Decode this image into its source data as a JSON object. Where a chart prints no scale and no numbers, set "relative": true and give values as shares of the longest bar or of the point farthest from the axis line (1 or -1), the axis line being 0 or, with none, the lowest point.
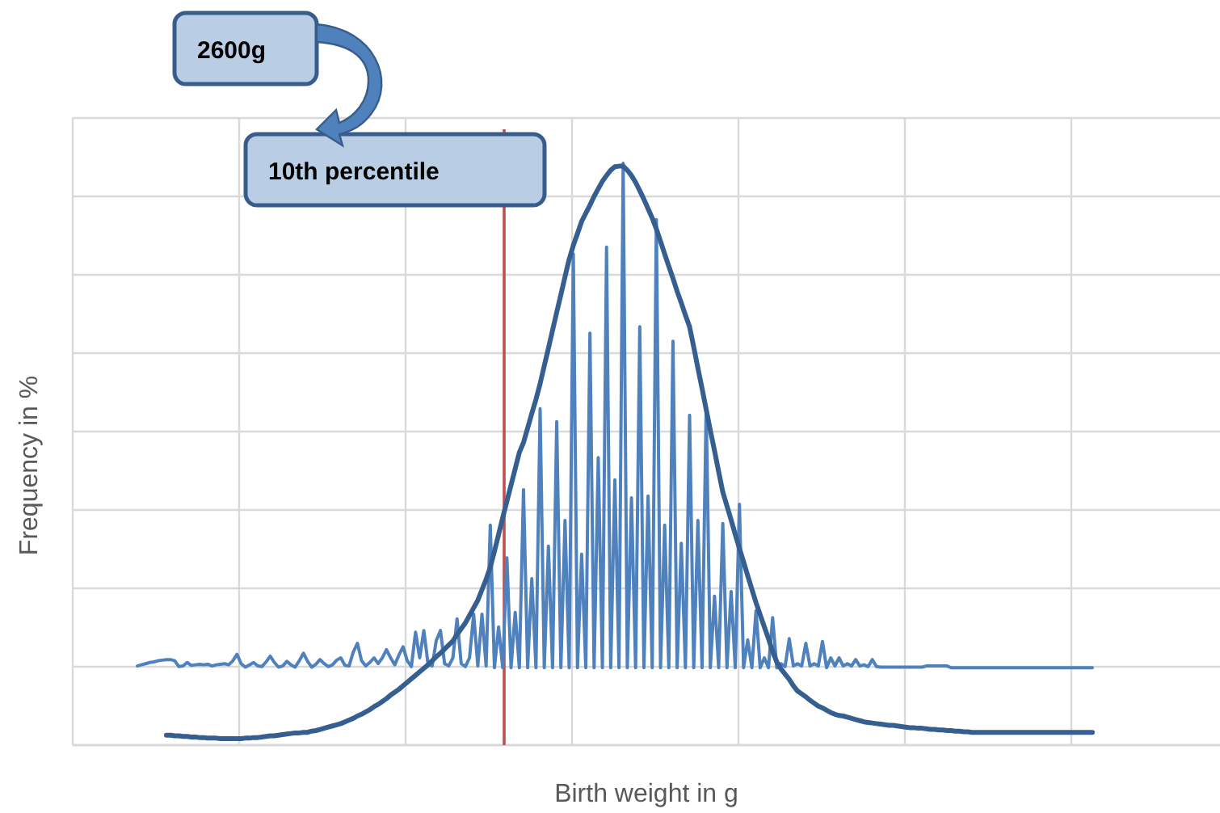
{
  "chart_data": {
    "type": "line",
    "relative": true,
    "xlabel": "Birth weight in g",
    "ylabel": "Frequency in %",
    "annotations": [
      "2600g",
      "10th percentile"
    ],
    "grid": true,
    "marker": "none",
    "categories": [
      null,
      null,
      null,
      null,
      null,
      null,
      null,
      null,
      null,
      null,
      null,
      null,
      null,
      null,
      null,
      null,
      null,
      null,
      null,
      null,
      null,
      null,
      null,
      null,
      null,
      null,
      null,
      null,
      null,
      null,
      null,
      null,
      null,
      null,
      null,
      null,
      null,
      null,
      null,
      null,
      null,
      null,
      null,
      null,
      null,
      null,
      null,
      null,
      null,
      null,
      null,
      null,
      null,
      null,
      null,
      null,
      null,
      null,
      null,
      null,
      null,
      null,
      null,
      null,
      null,
      null,
      null,
      null,
      null,
      null,
      null,
      null,
      null,
      null,
      null,
      null,
      null,
      null,
      null,
      null,
      null,
      null,
      null,
      null,
      null,
      null,
      null,
      null,
      null,
      null,
      null,
      null,
      null,
      null,
      null,
      null,
      null,
      null,
      null,
      null,
      null,
      null,
      null,
      null,
      null,
      null,
      null,
      null,
      null,
      null,
      null,
      null,
      null,
      null,
      null,
      null,
      null,
      null,
      null,
      null,
      null,
      null,
      null,
      null,
      null,
      null,
      null,
      null,
      null,
      null,
      null,
      null,
      null,
      null,
      null,
      null,
      null,
      null,
      null,
      null,
      null,
      null,
      null,
      null,
      null,
      null,
      null,
      null,
      null,
      null,
      null,
      null,
      null,
      null,
      null,
      null,
      null,
      null,
      null,
      null,
      null,
      null,
      null,
      null,
      null,
      null,
      null,
      null,
      null,
      null,
      null,
      null,
      null,
      null,
      null,
      null,
      null,
      null,
      null,
      null,
      null,
      null,
      null,
      null,
      null,
      null,
      null,
      null,
      null,
      null,
      null,
      null,
      null,
      null,
      null,
      null,
      null,
      null,
      null,
      null,
      null,
      null,
      null,
      null,
      null,
      null,
      null,
      null,
      null,
      null,
      null,
      null,
      null,
      null,
      null,
      null,
      null,
      null,
      null,
      null,
      null,
      null,
      null,
      null,
      null,
      null,
      null,
      null,
      null,
      null,
      null
    ],
    "series": [
      {
        "color": "#4f81bd",
        "values": [
          0.136,
          0.138,
          0.14,
          0.142,
          0.143,
          0.145,
          0.146,
          0.147,
          0.147,
          0.145,
          0.135,
          0.136,
          0.142,
          0.137,
          0.138,
          0.139,
          0.138,
          0.139,
          0.136,
          0.138,
          0.139,
          0.14,
          0.138,
          0.145,
          0.156,
          0.14,
          0.134,
          0.138,
          0.142,
          0.136,
          0.135,
          0.143,
          0.153,
          0.142,
          0.134,
          0.136,
          0.144,
          0.138,
          0.134,
          0.145,
          0.158,
          0.144,
          0.134,
          0.139,
          0.147,
          0.14,
          0.135,
          0.138,
          0.146,
          0.15,
          0.137,
          0.136,
          0.16,
          0.175,
          0.145,
          0.136,
          0.142,
          0.15,
          0.14,
          0.15,
          0.164,
          0.15,
          0.138,
          0.155,
          0.169,
          0.145,
          0.135,
          0.194,
          0.15,
          0.197,
          0.14,
          0.136,
          0.18,
          0.197,
          0.14,
          0.136,
          0.15,
          0.217,
          0.14,
          0.135,
          0.15,
          0.225,
          0.136,
          0.225,
          0.136,
          0.378,
          0.133,
          0.203,
          0.133,
          0.322,
          0.133,
          0.228,
          0.133,
          0.439,
          0.133,
          0.286,
          0.133,
          0.578,
          0.133,
          0.342,
          0.133,
          0.556,
          0.133,
          0.386,
          0.133,
          0.844,
          0.133,
          0.328,
          0.133,
          0.708,
          0.133,
          0.494,
          0.133,
          0.856,
          0.133,
          0.456,
          0.133,
          1.0,
          0.133,
          0.425,
          0.133,
          0.719,
          0.133,
          0.428,
          0.133,
          0.903,
          0.133,
          0.378,
          0.133,
          0.694,
          0.133,
          0.347,
          0.133,
          0.567,
          0.133,
          0.386,
          0.133,
          0.581,
          0.133,
          0.256,
          0.133,
          0.381,
          0.133,
          0.264,
          0.133,
          0.414,
          0.133,
          0.181,
          0.133,
          0.231,
          0.133,
          0.15,
          0.133,
          0.219,
          0.133,
          0.14,
          0.135,
          0.183,
          0.136,
          0.14,
          0.136,
          0.175,
          0.136,
          0.14,
          0.136,
          0.178,
          0.133,
          0.15,
          0.136,
          0.15,
          0.136,
          0.14,
          0.136,
          0.147,
          0.136,
          0.138,
          0.135,
          0.147,
          0.135,
          0.134,
          0.134,
          0.134,
          0.134,
          0.134,
          0.134,
          0.134,
          0.134,
          0.134,
          0.134,
          0.134,
          0.136,
          0.136,
          0.136,
          0.136,
          0.136,
          0.136,
          0.133,
          0.133,
          0.133,
          0.133,
          0.133,
          0.133,
          0.133,
          0.133,
          0.133,
          0.133,
          0.133,
          0.133,
          0.133,
          0.133,
          0.133,
          0.133,
          0.133,
          0.133,
          0.133,
          0.133,
          0.133,
          0.133,
          0.133,
          0.133,
          0.133,
          0.133,
          0.133,
          0.133,
          0.133,
          0.133,
          0.133,
          0.133,
          0.133,
          0.133,
          0.133
        ]
      },
      {
        "color": "#365f91",
        "values": [
          null,
          null,
          null,
          null,
          null,
          null,
          null,
          0.017,
          0.017,
          0.016,
          0.016,
          0.015,
          0.015,
          0.014,
          0.014,
          0.013,
          0.013,
          0.012,
          0.012,
          0.012,
          0.011,
          0.011,
          0.011,
          0.011,
          0.011,
          0.011,
          0.012,
          0.012,
          0.013,
          0.013,
          0.014,
          0.015,
          0.016,
          0.016,
          0.017,
          0.018,
          0.019,
          0.02,
          0.021,
          0.021,
          0.022,
          0.022,
          0.024,
          0.025,
          0.027,
          0.029,
          0.031,
          0.033,
          0.035,
          0.037,
          0.04,
          0.043,
          0.046,
          0.05,
          0.053,
          0.057,
          0.061,
          0.066,
          0.07,
          0.075,
          0.08,
          0.086,
          0.091,
          0.096,
          0.102,
          0.108,
          0.114,
          0.12,
          0.126,
          0.132,
          0.138,
          0.145,
          0.152,
          0.158,
          0.165,
          0.172,
          0.179,
          0.19,
          0.2,
          0.21,
          0.223,
          0.236,
          0.249,
          0.267,
          0.285,
          0.306,
          0.333,
          0.362,
          0.391,
          0.419,
          0.447,
          0.475,
          0.503,
          0.52,
          0.545,
          0.57,
          0.594,
          0.621,
          0.652,
          0.682,
          0.713,
          0.744,
          0.774,
          0.805,
          0.835,
          0.859,
          0.879,
          0.9,
          0.914,
          0.928,
          0.943,
          0.956,
          0.969,
          0.979,
          0.988,
          0.994,
          0.995,
          0.995,
          0.988,
          0.979,
          0.967,
          0.953,
          0.938,
          0.922,
          0.906,
          0.887,
          0.866,
          0.844,
          0.823,
          0.802,
          0.78,
          0.76,
          0.739,
          0.719,
          0.684,
          0.648,
          0.613,
          0.577,
          0.541,
          0.506,
          0.47,
          0.435,
          0.411,
          0.387,
          0.362,
          0.338,
          0.315,
          0.291,
          0.268,
          0.245,
          0.224,
          0.203,
          0.183,
          0.161,
          0.143,
          0.131,
          0.122,
          0.113,
          0.102,
          0.093,
          0.088,
          0.083,
          0.077,
          0.072,
          0.067,
          0.064,
          0.06,
          0.056,
          0.053,
          0.051,
          0.05,
          0.048,
          0.046,
          0.044,
          0.042,
          0.04,
          0.039,
          0.038,
          0.037,
          0.036,
          0.035,
          0.034,
          0.034,
          0.033,
          0.032,
          0.031,
          0.03,
          0.03,
          0.029,
          0.029,
          0.028,
          0.027,
          0.027,
          0.026,
          0.026,
          0.025,
          0.025,
          0.024,
          0.024,
          0.023,
          0.023,
          0.022,
          0.022,
          0.022,
          0.022,
          0.022,
          0.022,
          0.022,
          0.022,
          0.022,
          0.022,
          0.022,
          0.022,
          0.022,
          0.022,
          0.022,
          0.022,
          0.022,
          0.022,
          0.022,
          0.022,
          0.022,
          0.022,
          0.022,
          0.022,
          0.022,
          0.022,
          0.022,
          0.022,
          0.022,
          0.022
        ]
      }
    ]
  }
}
